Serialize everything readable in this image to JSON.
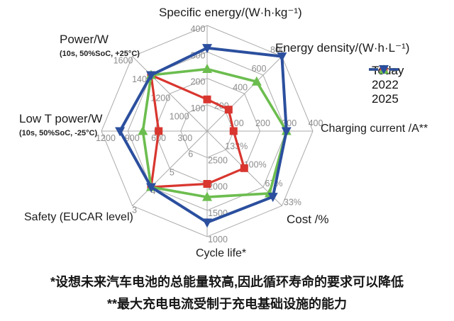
{
  "page": {
    "background": "#ffffff",
    "grid_color": "#ababab",
    "tick_color": "#8c8c8c"
  },
  "chart_data": {
    "type": "radar",
    "rings": 4,
    "grid": "on",
    "legend_position": "top-right",
    "axes": [
      {
        "label": "Specific energy/(W·h·kg⁻¹)",
        "sub": "",
        "tick_labels": [
          "100",
          "200",
          "300",
          "400"
        ],
        "tick_values": [
          100,
          200,
          300,
          400
        ]
      },
      {
        "label": "Energy density/(W·h·L⁻¹)",
        "sub": "",
        "tick_labels": [
          "200",
          "400",
          "600",
          "800"
        ],
        "tick_values": [
          200,
          400,
          600,
          800
        ]
      },
      {
        "label": "Charging current /A**",
        "sub": "",
        "tick_labels": [
          "100",
          "200",
          "300",
          "400"
        ],
        "tick_values": [
          100,
          200,
          300,
          400
        ]
      },
      {
        "label": "Cost /%",
        "sub": "",
        "tick_labels": [
          "133%",
          "100%",
          "67%",
          "33%"
        ],
        "tick_values": [
          133,
          100,
          67,
          33
        ]
      },
      {
        "label": "Cycle life*",
        "sub": "",
        "tick_labels": [
          "2500",
          "2000",
          "1500",
          "1000"
        ],
        "tick_values": [
          2500,
          2000,
          1500,
          1000
        ]
      },
      {
        "label": "Safety (EUCAR level)",
        "sub": "",
        "tick_labels": [
          "6",
          "5",
          "4",
          "3"
        ],
        "tick_values": [
          6,
          5,
          4,
          3
        ]
      },
      {
        "label": "Low T power/W",
        "sub": "(10s, 50%SoC, -25°C)",
        "tick_labels": [
          "300",
          "600",
          "900",
          "1200"
        ],
        "tick_values": [
          300,
          600,
          900,
          1200
        ]
      },
      {
        "label": "Power/W",
        "sub": "(10s, 50%SoC, +25°C)",
        "tick_labels": [
          "1000",
          "1200",
          "1400",
          "1600"
        ],
        "tick_values": [
          1000,
          1200,
          1400,
          1600
        ]
      }
    ],
    "series": [
      {
        "name": "Today",
        "color": "#d8362f",
        "marker": "square",
        "values": [
          120,
          230,
          100,
          100,
          2000,
          4,
          550,
          1400
        ]
      },
      {
        "name": "2022",
        "color": "#6cbd4f",
        "marker": "triangle-up",
        "values": [
          235,
          530,
          300,
          55,
          1750,
          4,
          730,
          1400
        ]
      },
      {
        "name": "2025",
        "color": "#2b4f9e",
        "marker": "triangle-down",
        "values": [
          315,
          800,
          300,
          49,
          1270,
          4,
          990,
          1400
        ]
      }
    ]
  },
  "footnotes": {
    "line1": "*设想未来汽车电池的总能量较高,因此循环寿命的要求可以降低",
    "line2": "**最大充电电流受制于充电基础设施的能力"
  }
}
